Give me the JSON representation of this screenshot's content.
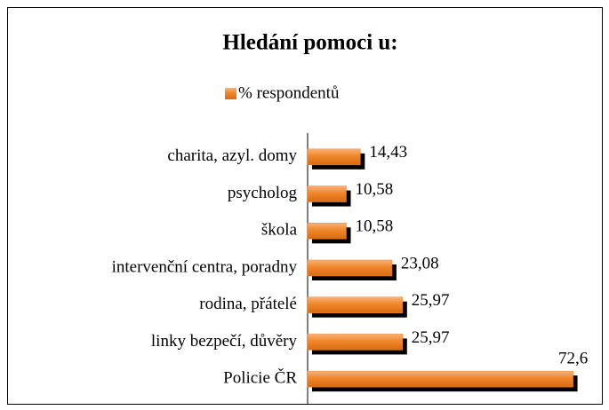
{
  "chart_data": {
    "type": "bar",
    "orientation": "horizontal",
    "title": "Hledání pomoci u:",
    "categories": [
      "charita, azyl. domy",
      "psycholog",
      "škola",
      "intervenční centra, poradny",
      "rodina, přátelé",
      "linky bezpečí, důvěry",
      "Policie ČR"
    ],
    "series": [
      {
        "name": "% respondentů",
        "color": "#f0862a",
        "values": [
          14.43,
          10.58,
          10.58,
          23.08,
          25.97,
          25.97,
          72.6
        ],
        "value_labels": [
          "14,43",
          "10,58",
          "10,58",
          "23,08",
          "25,97",
          "25,97",
          "72,6"
        ]
      }
    ],
    "xlim": [
      0,
      80
    ]
  }
}
